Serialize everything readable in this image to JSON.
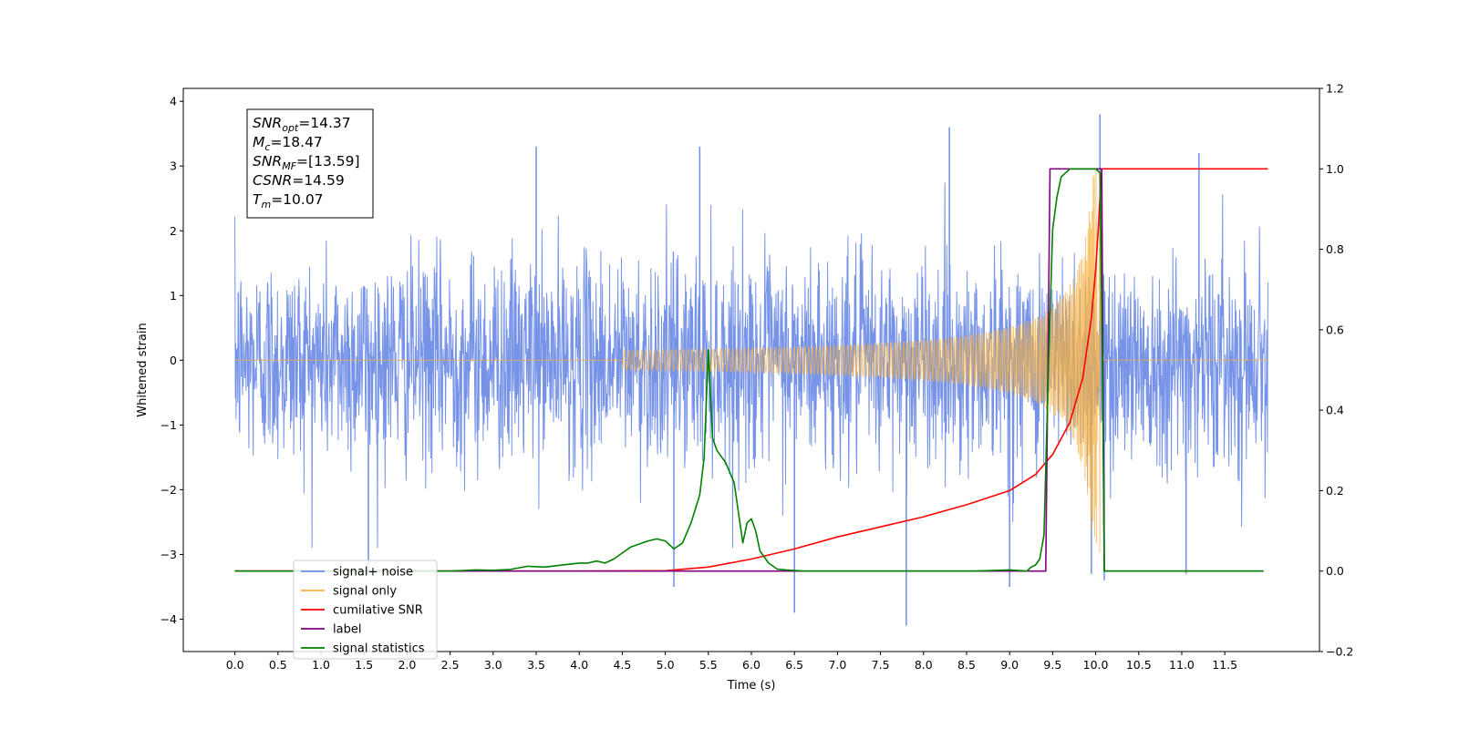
{
  "chart_data": {
    "type": "line",
    "xlabel": "Time (s)",
    "ylabel": "Whitened strain",
    "xlim": [
      -0.6,
      12.6
    ],
    "ylim": [
      -4.5,
      4.2
    ],
    "y2lim": [
      -0.2,
      1.2
    ],
    "x_ticks": [
      0.0,
      0.5,
      1.0,
      1.5,
      2.0,
      2.5,
      3.0,
      3.5,
      4.0,
      4.5,
      5.0,
      5.5,
      6.0,
      6.5,
      7.0,
      7.5,
      8.0,
      8.5,
      9.0,
      9.5,
      10.0,
      10.5,
      11.0,
      11.5
    ],
    "x_tick_labels": [
      "0.0",
      "0.5",
      "1.0",
      "1.5",
      "2.0",
      "2.5",
      "3.0",
      "3.5",
      "4.0",
      "4.5",
      "5.0",
      "5.5",
      "6.0",
      "6.5",
      "7.0",
      "7.5",
      "8.0",
      "8.5",
      "9.0",
      "9.5",
      "10.0",
      "10.5",
      "11.0",
      "11.5"
    ],
    "y_ticks": [
      4,
      3,
      2,
      1,
      0,
      -1,
      -2,
      -3,
      -4
    ],
    "y_tick_labels": [
      "4",
      "3",
      "2",
      "1",
      "0",
      "−1",
      "−2",
      "−3",
      "−4"
    ],
    "y2_ticks": [
      1.2,
      1.0,
      0.8,
      0.6,
      0.4,
      0.2,
      0.0,
      -0.2
    ],
    "y2_tick_labels": [
      "1.2",
      "1.0",
      "0.8",
      "0.6",
      "0.4",
      "0.2",
      "0.0",
      "−0.2"
    ],
    "grid": false,
    "legend_position": "lower-left",
    "annotation": [
      {
        "base": "SNR",
        "sub": "opt",
        "value": "=14.37"
      },
      {
        "base": "M",
        "sub": "c",
        "value": "=18.47"
      },
      {
        "base": "SNR",
        "sub": "MF",
        "value": "=[13.59]"
      },
      {
        "base": "CSNR",
        "sub": "",
        "value": "=14.59"
      },
      {
        "base": "T",
        "sub": "m",
        "value": "=10.07"
      }
    ],
    "series": [
      {
        "name": "signal+ noise",
        "color": "#6f8de6",
        "axis": "left",
        "kind": "noise",
        "x_range": [
          0.0,
          12.0
        ],
        "sigma": 0.8,
        "spike_peaks": [
          {
            "x": 10.05,
            "y": 3.8
          },
          {
            "x": 8.3,
            "y": 3.6
          },
          {
            "x": 3.5,
            "y": 3.3
          },
          {
            "x": 5.4,
            "y": 3.3
          },
          {
            "x": 7.8,
            "y": -4.1
          },
          {
            "x": 6.5,
            "y": -3.9
          },
          {
            "x": 5.1,
            "y": -3.5
          },
          {
            "x": 1.55,
            "y": -3.3
          },
          {
            "x": 9.0,
            "y": -3.5
          },
          {
            "x": 11.2,
            "y": 3.2
          },
          {
            "x": 11.05,
            "y": -3.3
          },
          {
            "x": 9.95,
            "y": -3.3
          },
          {
            "x": 10.1,
            "y": -3.4
          }
        ]
      },
      {
        "name": "signal only",
        "color": "#f5b041",
        "axis": "left",
        "kind": "chirp",
        "t_merger": 10.07,
        "x_range": [
          0.0,
          12.0
        ],
        "peak_amplitude": 3.0
      },
      {
        "name": "cumilative SNR",
        "color": "#ff0000",
        "axis": "right",
        "x": [
          0.0,
          4.0,
          5.0,
          5.5,
          6.0,
          6.5,
          7.0,
          7.5,
          8.0,
          8.5,
          9.0,
          9.3,
          9.5,
          9.7,
          9.85,
          9.95,
          10.0,
          10.03,
          10.05,
          10.07,
          10.1,
          12.0
        ],
        "y": [
          0.0,
          0.0,
          0.001,
          0.01,
          0.03,
          0.055,
          0.085,
          0.11,
          0.135,
          0.165,
          0.2,
          0.24,
          0.29,
          0.37,
          0.48,
          0.63,
          0.75,
          0.85,
          0.93,
          1.0,
          1.0,
          1.0
        ]
      },
      {
        "name": "label",
        "color": "#800080",
        "axis": "right",
        "x": [
          0.0,
          9.42,
          9.47,
          10.07,
          10.1,
          11.95
        ],
        "y": [
          0.0,
          0.0,
          1.0,
          1.0,
          0.0,
          0.0
        ]
      },
      {
        "name": "signal statistics",
        "color": "#008000",
        "axis": "right",
        "x": [
          0.0,
          2.5,
          2.8,
          3.0,
          3.2,
          3.4,
          3.6,
          3.8,
          4.0,
          4.1,
          4.2,
          4.3,
          4.4,
          4.5,
          4.6,
          4.8,
          4.9,
          5.0,
          5.05,
          5.1,
          5.2,
          5.3,
          5.4,
          5.45,
          5.5,
          5.55,
          5.6,
          5.7,
          5.8,
          5.9,
          5.95,
          6.0,
          6.05,
          6.1,
          6.2,
          6.3,
          6.4,
          6.6,
          6.8,
          8.6,
          9.0,
          9.2,
          9.25,
          9.3,
          9.35,
          9.4,
          9.45,
          9.5,
          9.55,
          9.6,
          9.7,
          9.8,
          9.9,
          10.0,
          10.05,
          10.08,
          10.1,
          11.95
        ],
        "y": [
          0.0,
          0.0,
          0.003,
          0.002,
          0.004,
          0.012,
          0.01,
          0.015,
          0.02,
          0.02,
          0.025,
          0.02,
          0.03,
          0.045,
          0.06,
          0.075,
          0.08,
          0.075,
          0.065,
          0.055,
          0.07,
          0.12,
          0.19,
          0.28,
          0.55,
          0.33,
          0.3,
          0.27,
          0.22,
          0.07,
          0.12,
          0.13,
          0.1,
          0.05,
          0.02,
          0.005,
          0.003,
          0.0,
          0.0,
          0.0,
          0.003,
          0.0,
          0.01,
          0.015,
          0.03,
          0.09,
          0.5,
          0.85,
          0.93,
          0.98,
          1.0,
          1.0,
          1.0,
          1.0,
          0.99,
          0.5,
          0.0,
          0.0
        ]
      }
    ],
    "legend": [
      {
        "label": "signal+ noise",
        "color": "#6f8de6"
      },
      {
        "label": "signal only",
        "color": "#f5b041"
      },
      {
        "label": "cumilative SNR",
        "color": "#ff0000"
      },
      {
        "label": "label",
        "color": "#800080"
      },
      {
        "label": "signal statistics",
        "color": "#008000"
      }
    ]
  }
}
